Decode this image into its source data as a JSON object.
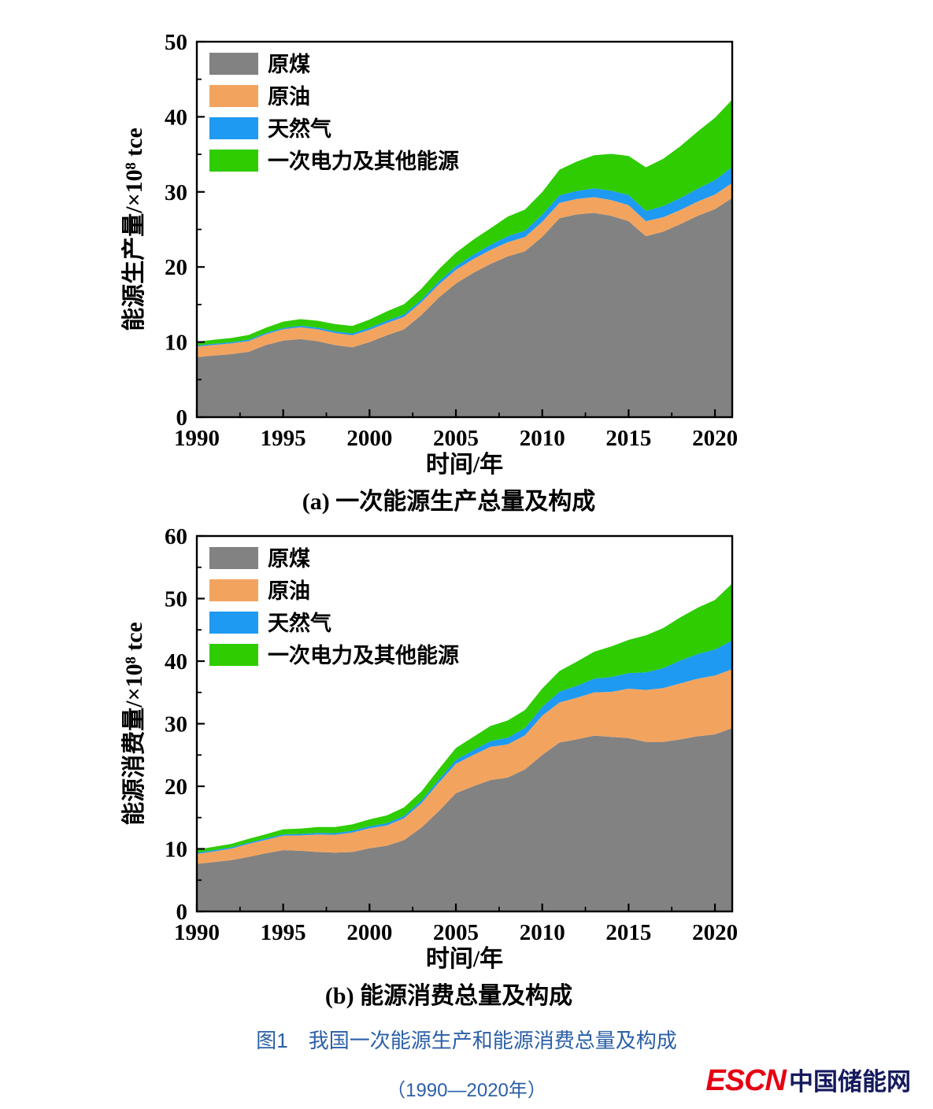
{
  "chart_data": [
    {
      "type": "area",
      "stacked": true,
      "subtitle": "(a) 一次能源生产总量及构成",
      "xlabel": "时间/年",
      "ylabel": "能源生产量/×10⁸ tce",
      "xlim": [
        1990,
        2021
      ],
      "ylim": [
        0,
        50
      ],
      "xticks": [
        1990,
        1995,
        2000,
        2005,
        2010,
        2015,
        2020
      ],
      "yticks": [
        0,
        10,
        20,
        30,
        40,
        50
      ],
      "grid": false,
      "legend_position": "top-left",
      "x": [
        1990,
        1991,
        1992,
        1993,
        1994,
        1995,
        1996,
        1997,
        1998,
        1999,
        2000,
        2001,
        2002,
        2003,
        2004,
        2005,
        2006,
        2007,
        2008,
        2009,
        2010,
        2011,
        2012,
        2013,
        2014,
        2015,
        2016,
        2017,
        2018,
        2019,
        2020,
        2021
      ],
      "series": [
        {
          "id": "coal",
          "name": "原煤",
          "color": "#828282",
          "values": [
            8.0,
            8.2,
            8.4,
            8.7,
            9.6,
            10.2,
            10.4,
            10.1,
            9.6,
            9.3,
            10.0,
            10.9,
            11.7,
            13.6,
            15.9,
            17.8,
            19.2,
            20.4,
            21.4,
            22.1,
            24.0,
            26.5,
            27.0,
            27.2,
            26.8,
            26.1,
            24.1,
            24.7,
            25.7,
            26.8,
            27.7,
            29.2
          ]
        },
        {
          "id": "oil",
          "name": "原油",
          "color": "#F2A45F",
          "values": [
            1.4,
            1.42,
            1.43,
            1.45,
            1.45,
            1.5,
            1.57,
            1.6,
            1.61,
            1.6,
            1.63,
            1.64,
            1.67,
            1.7,
            1.75,
            1.81,
            1.84,
            1.86,
            1.9,
            1.89,
            2.03,
            2.03,
            2.07,
            2.1,
            2.11,
            2.14,
            2.0,
            1.92,
            1.89,
            1.91,
            1.95,
            2.0
          ]
        },
        {
          "id": "gas",
          "name": "天然气",
          "color": "#1E9AF2",
          "values": [
            0.15,
            0.16,
            0.16,
            0.17,
            0.18,
            0.18,
            0.2,
            0.22,
            0.23,
            0.25,
            0.27,
            0.3,
            0.32,
            0.35,
            0.41,
            0.49,
            0.59,
            0.69,
            0.8,
            0.85,
            0.95,
            1.03,
            1.07,
            1.17,
            1.25,
            1.35,
            1.37,
            1.48,
            1.6,
            1.73,
            1.92,
            2.1
          ]
        },
        {
          "id": "electricity-other",
          "name": "一次电力及其他能源",
          "color": "#2ECC00",
          "values": [
            0.5,
            0.53,
            0.55,
            0.62,
            0.68,
            0.85,
            0.88,
            0.92,
            0.95,
            1.0,
            1.1,
            1.25,
            1.35,
            1.45,
            1.6,
            1.8,
            2.0,
            2.2,
            2.6,
            2.8,
            3.0,
            3.4,
            3.9,
            4.4,
            4.9,
            5.2,
            5.8,
            6.3,
            6.9,
            7.6,
            8.3,
            9.0
          ]
        }
      ]
    },
    {
      "type": "area",
      "stacked": true,
      "subtitle": "(b) 能源消费总量及构成",
      "xlabel": "时间/年",
      "ylabel": "能源消费量/×10⁸ tce",
      "xlim": [
        1990,
        2021
      ],
      "ylim": [
        0,
        60
      ],
      "xticks": [
        1990,
        1995,
        2000,
        2005,
        2010,
        2015,
        2020
      ],
      "yticks": [
        0,
        10,
        20,
        30,
        40,
        50,
        60
      ],
      "grid": false,
      "legend_position": "top-left",
      "x": [
        1990,
        1991,
        1992,
        1993,
        1994,
        1995,
        1996,
        1997,
        1998,
        1999,
        2000,
        2001,
        2002,
        2003,
        2004,
        2005,
        2006,
        2007,
        2008,
        2009,
        2010,
        2011,
        2012,
        2013,
        2014,
        2015,
        2016,
        2017,
        2018,
        2019,
        2020,
        2021
      ],
      "series": [
        {
          "id": "coal",
          "name": "原煤",
          "color": "#828282",
          "values": [
            7.6,
            7.9,
            8.2,
            8.7,
            9.3,
            9.8,
            9.7,
            9.5,
            9.4,
            9.5,
            10.1,
            10.5,
            11.4,
            13.4,
            16.0,
            18.9,
            20.0,
            21.0,
            21.4,
            22.7,
            25.0,
            27.0,
            27.5,
            28.1,
            27.9,
            27.7,
            27.1,
            27.1,
            27.5,
            28.0,
            28.3,
            29.3
          ]
        },
        {
          "id": "oil",
          "name": "原油",
          "color": "#F2A45F",
          "values": [
            1.6,
            1.7,
            1.85,
            2.1,
            2.15,
            2.3,
            2.45,
            2.8,
            2.85,
            3.1,
            3.2,
            3.25,
            3.5,
            3.9,
            4.55,
            4.7,
            5.0,
            5.3,
            5.3,
            5.45,
            6.3,
            6.4,
            6.65,
            6.9,
            7.2,
            7.9,
            8.3,
            8.6,
            8.95,
            9.2,
            9.4,
            9.4
          ]
        },
        {
          "id": "gas",
          "name": "天然气",
          "color": "#1E9AF2",
          "values": [
            0.2,
            0.2,
            0.2,
            0.21,
            0.22,
            0.23,
            0.24,
            0.26,
            0.27,
            0.29,
            0.32,
            0.35,
            0.38,
            0.42,
            0.5,
            0.61,
            0.77,
            0.93,
            1.07,
            1.19,
            1.42,
            1.73,
            1.93,
            2.2,
            2.37,
            2.5,
            2.81,
            3.18,
            3.66,
            3.94,
            4.17,
            4.61
          ]
        },
        {
          "id": "electricity-other",
          "name": "一次电力及其他能源",
          "color": "#2ECC00",
          "values": [
            0.5,
            0.53,
            0.56,
            0.6,
            0.67,
            0.8,
            0.86,
            0.92,
            0.98,
            1.02,
            1.1,
            1.25,
            1.35,
            1.45,
            1.65,
            1.9,
            2.1,
            2.4,
            2.75,
            2.85,
            2.9,
            3.3,
            3.85,
            4.3,
            4.9,
            5.3,
            5.9,
            6.4,
            6.9,
            7.4,
            7.9,
            9.1
          ]
        }
      ]
    }
  ],
  "caption": {
    "title": "图1　我国一次能源生产和能源消费总量及构成",
    "subtitle": "（1990—2020年）"
  },
  "logo": {
    "escn": "ESCN",
    "site": "中国储能网",
    "escn_color": "#E60012",
    "site_color": "#151A5E"
  },
  "colors": {
    "caption_blue": "#2B5FA8",
    "coal_gray": "#828282",
    "oil_orange": "#F2A45F",
    "gas_blue": "#1E9AF2",
    "electricity_green": "#2ECC00"
  }
}
